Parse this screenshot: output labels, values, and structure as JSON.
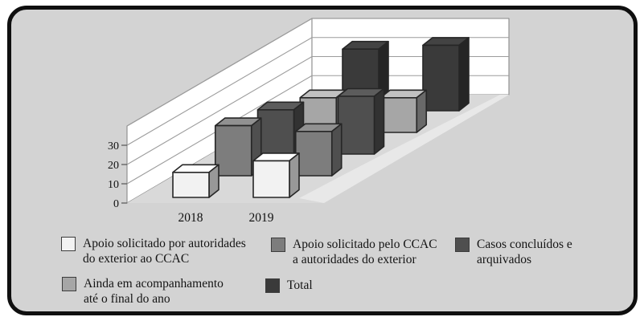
{
  "window": {
    "background": "#ffffff",
    "panel_background": "#d3d3d3",
    "panel_border": "#0f0f0f"
  },
  "chart_data": {
    "type": "bar",
    "projection": "3d",
    "title": "",
    "xlabel": "",
    "ylabel": "",
    "categories": [
      "2018",
      "2019"
    ],
    "series": [
      {
        "name": "Apoio solicitado por autoridades do exterior ao CCAC",
        "color": "#f2f2f2",
        "values": [
          13,
          19
        ]
      },
      {
        "name": "Apoio solicitado pelo CCAC a autoridades do exterior",
        "color": "#7d7d7d",
        "values": [
          26,
          23
        ]
      },
      {
        "name": "Casos concluídos e arquivados",
        "color": "#4f4f4f",
        "values": [
          23,
          30
        ]
      },
      {
        "name": "Ainda em acompanhamento até o final do ano",
        "color": "#a6a6a6",
        "values": [
          18,
          18
        ]
      },
      {
        "name": "Total",
        "color": "#3a3a3a",
        "values": [
          32,
          34
        ]
      }
    ],
    "yticks": [
      0,
      10,
      20,
      30
    ],
    "ylim": [
      0,
      40
    ],
    "grid": true,
    "legend_position": "bottom"
  },
  "legend": {
    "items": [
      {
        "line1": "Apoio solicitado por autoridades",
        "line2": "do exterior ao CCAC",
        "color": "#f2f2f2"
      },
      {
        "line1": "Apoio solicitado pelo CCAC",
        "line2": "a autoridades do exterior",
        "color": "#7d7d7d"
      },
      {
        "line1": "Casos concluídos e",
        "line2": "arquivados",
        "color": "#4f4f4f"
      },
      {
        "line1": "Ainda em acompanhamento",
        "line2": "até o final do ano",
        "color": "#a6a6a6"
      },
      {
        "line1": "Total",
        "line2": "",
        "color": "#3a3a3a"
      }
    ]
  }
}
